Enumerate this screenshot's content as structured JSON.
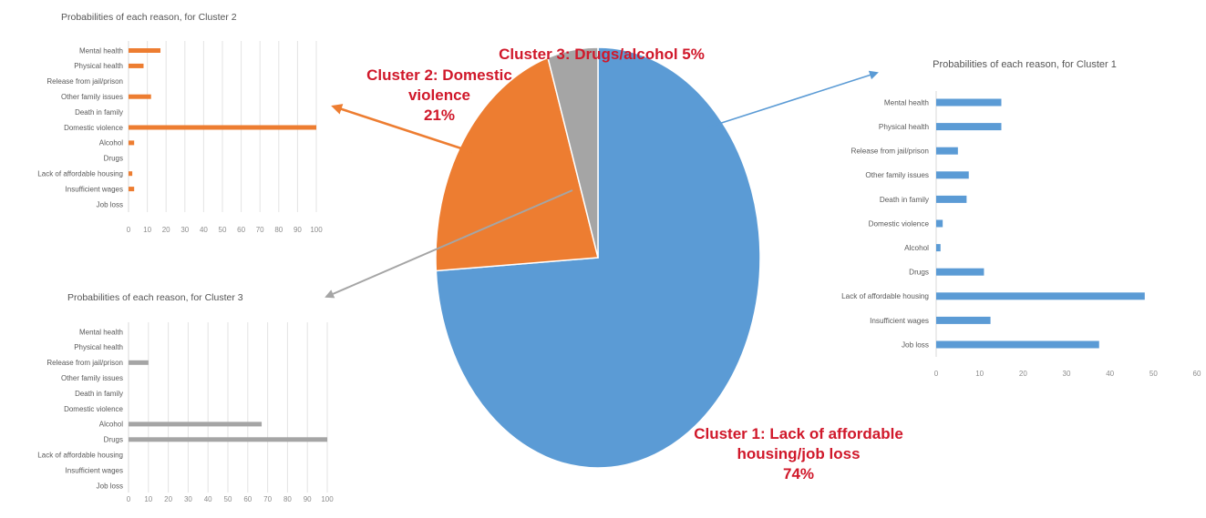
{
  "colors": {
    "cluster1": "#5b9bd5",
    "cluster2": "#ed7d31",
    "cluster3": "#a5a5a5",
    "label": "#d0182a"
  },
  "pie": {
    "labels": {
      "c1_line1": "Cluster 1: Lack of affordable",
      "c1_line2": "housing/job loss",
      "c1_line3": "74%",
      "c2_line1": "Cluster 2: Domestic",
      "c2_line2": "violence",
      "c2_line3": "21%",
      "c3_line1": "Cluster 3: Drugs/alcohol 5%"
    }
  },
  "chart_data": [
    {
      "type": "pie",
      "categories": [
        "Cluster 1: Lack of affordable housing/job loss",
        "Cluster 2: Domestic violence",
        "Cluster 3: Drugs/alcohol"
      ],
      "values": [
        74,
        21,
        5
      ]
    },
    {
      "type": "bar",
      "orientation": "horizontal",
      "title": "Probabilities of each reason, for Cluster 1",
      "categories": [
        "Mental health",
        "Physical health",
        "Release from jail/prison",
        "Other family issues",
        "Death in family",
        "Domestic violence",
        "Alcohol",
        "Drugs",
        "Lack of affordable housing",
        "Insufficient wages",
        "Job loss"
      ],
      "values": [
        15,
        15,
        5,
        7.5,
        7,
        1.5,
        1,
        11,
        48,
        12.5,
        37.5
      ],
      "xlim": [
        0,
        60
      ],
      "xticks": [
        "0",
        "10",
        "20",
        "30",
        "40",
        "50",
        "60"
      ],
      "grid": false
    },
    {
      "type": "bar",
      "orientation": "horizontal",
      "title": "Probabilities of each reason, for Cluster 2",
      "categories": [
        "Mental health",
        "Physical health",
        "Release from jail/prison",
        "Other family issues",
        "Death in family",
        "Domestic violence",
        "Alcohol",
        "Drugs",
        "Lack of affordable housing",
        "Insufficient wages",
        "Job loss"
      ],
      "values": [
        17,
        8,
        0,
        12,
        0,
        100,
        3,
        0,
        2,
        3,
        0
      ],
      "xlim": [
        0,
        100
      ],
      "xticks": [
        "0",
        "10",
        "20",
        "30",
        "40",
        "50",
        "60",
        "70",
        "80",
        "90",
        "100"
      ],
      "grid": true
    },
    {
      "type": "bar",
      "orientation": "horizontal",
      "title": "Probabilities of each reason, for Cluster 3",
      "categories": [
        "Mental health",
        "Physical health",
        "Release from jail/prison",
        "Other family issues",
        "Death in family",
        "Domestic violence",
        "Alcohol",
        "Drugs",
        "Lack of affordable housing",
        "Insufficient wages",
        "Job loss"
      ],
      "values": [
        0,
        0,
        10,
        0,
        0,
        0,
        67,
        100,
        0,
        0,
        0
      ],
      "xlim": [
        0,
        100
      ],
      "xticks": [
        "0",
        "10",
        "20",
        "30",
        "40",
        "50",
        "60",
        "70",
        "80",
        "90",
        "100"
      ],
      "grid": true
    }
  ]
}
